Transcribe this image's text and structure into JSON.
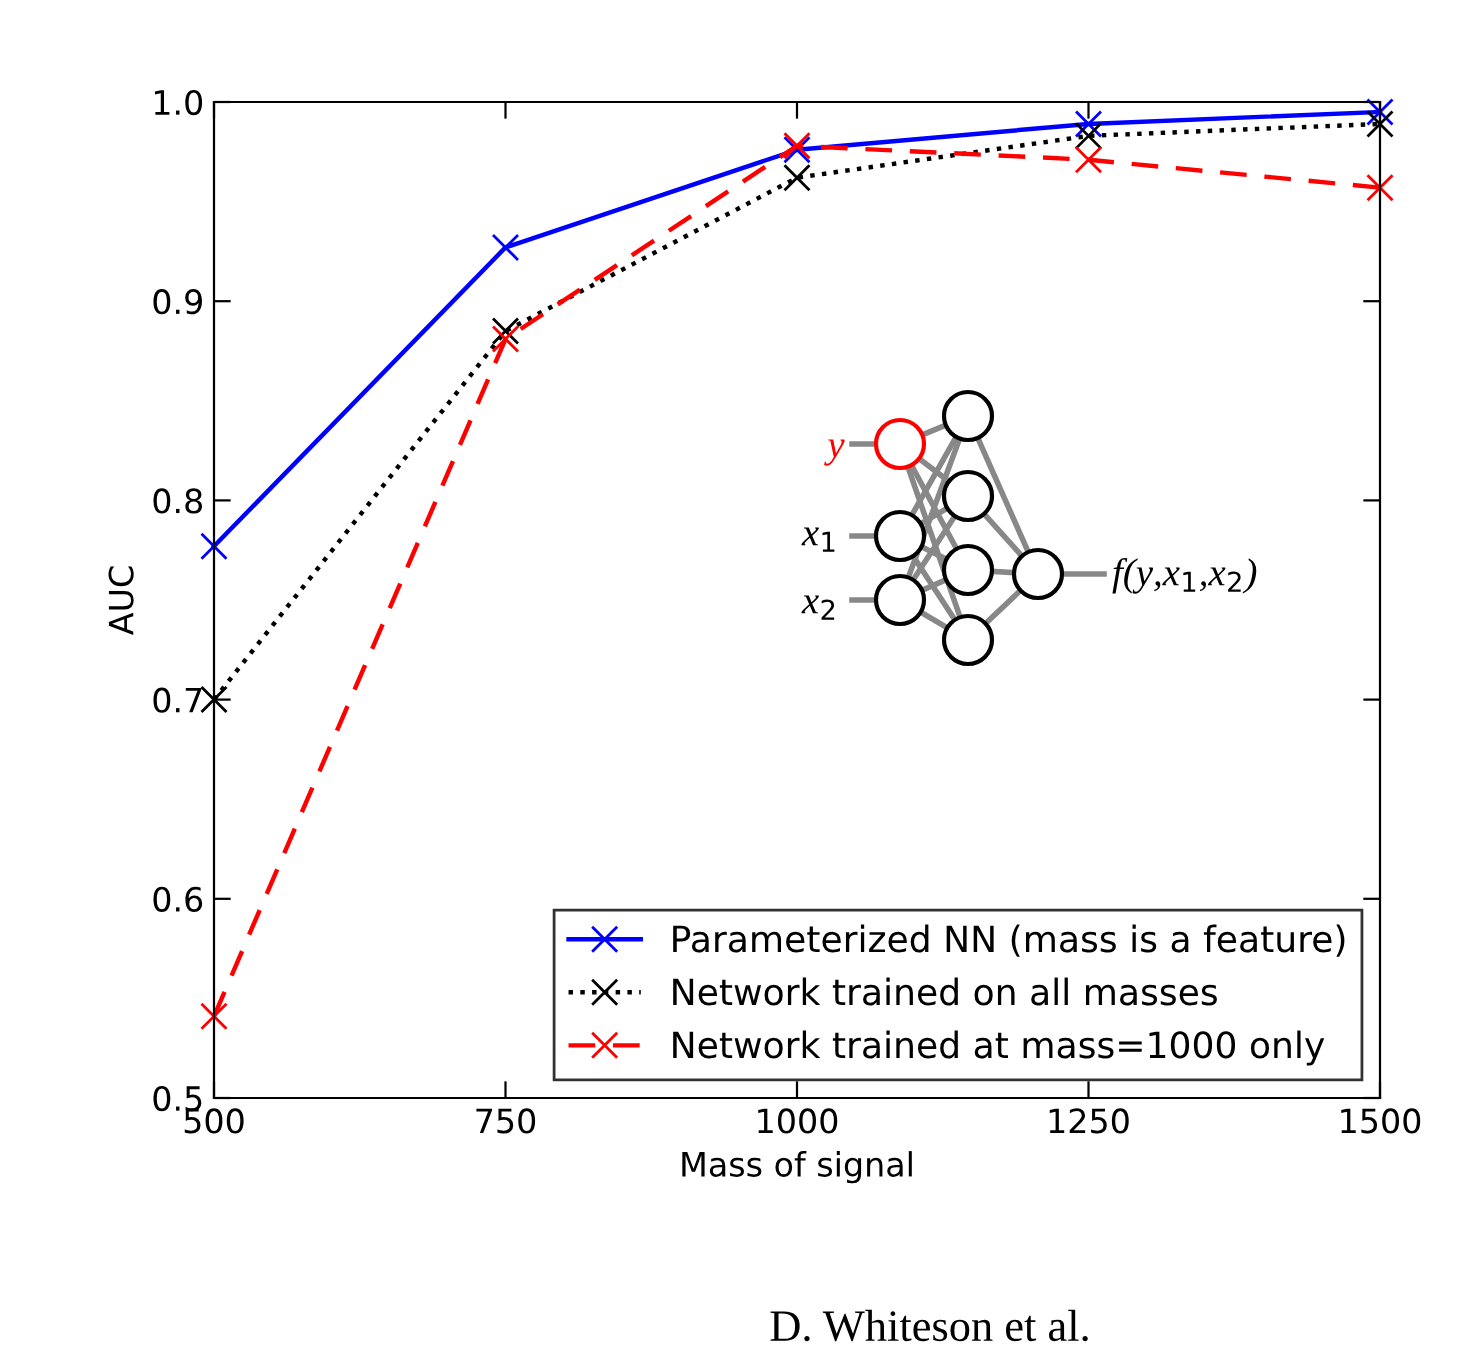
{
  "chart_data": {
    "type": "line",
    "xlabel": "Mass of signal",
    "ylabel": "AUC",
    "x": [
      500,
      750,
      1000,
      1250,
      1500
    ],
    "series": [
      {
        "name": "Parameterized NN (mass is a feature)",
        "color": "#0000ff",
        "line_style": "solid",
        "values": [
          0.777,
          0.927,
          0.976,
          0.989,
          0.995
        ]
      },
      {
        "name": "Network trained on all masses",
        "color": "#000000",
        "line_style": "dotted",
        "values": [
          0.7,
          0.885,
          0.962,
          0.983,
          0.989
        ]
      },
      {
        "name": "Network trained at mass=1000 only",
        "color": "#ff0000",
        "line_style": "dashed",
        "values": [
          0.541,
          0.881,
          0.978,
          0.971,
          0.957
        ]
      }
    ],
    "xlim": [
      500,
      1500
    ],
    "xticks": [
      500,
      750,
      1000,
      1250,
      1500
    ],
    "ylim": [
      0.5,
      1.0
    ],
    "yticks": [
      0.5,
      0.6,
      0.7,
      0.8,
      0.9,
      {
        "value": 1.0,
        "label": "1.0"
      }
    ],
    "marker": "cross",
    "grid": false,
    "legend": "bottom right",
    "annotations": [
      "y",
      "x$_{1}$",
      "x$_{2}$",
      "f(y,x$_{1}$,x$_{2}$)",
      "D. Whiteson et al."
    ]
  }
}
